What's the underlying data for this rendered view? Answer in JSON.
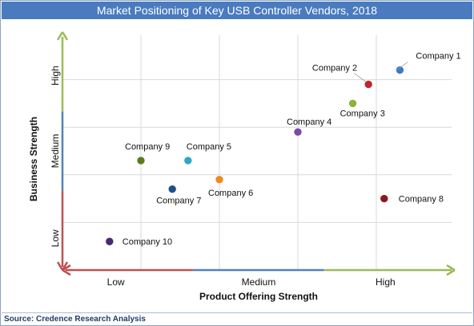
{
  "title": "Market Positioning of Key USB Controller Vendors, 2018",
  "source": "Source: Credence Research Analysis",
  "chart_data": {
    "type": "scatter",
    "title": "Market Positioning of Key USB Controller Vendors, 2018",
    "xlabel": "Product Offering Strength",
    "ylabel": "Business Strength",
    "x_ticks": [
      "Low",
      "Medium",
      "High"
    ],
    "y_ticks": [
      "Low",
      "Medium",
      "High"
    ],
    "xlim": [
      0,
      5
    ],
    "ylim": [
      0,
      5
    ],
    "grid": true,
    "points": [
      {
        "name": "Company 1",
        "x": 4.3,
        "y": 4.2,
        "color": "#3a78c9"
      },
      {
        "name": "Company 2",
        "x": 3.9,
        "y": 3.9,
        "color": "#c0262d"
      },
      {
        "name": "Company 3",
        "x": 3.7,
        "y": 3.5,
        "color": "#8db33a"
      },
      {
        "name": "Company 4",
        "x": 3.0,
        "y": 2.9,
        "color": "#7a4aa8"
      },
      {
        "name": "Company 5",
        "x": 1.6,
        "y": 2.3,
        "color": "#2ea6c4"
      },
      {
        "name": "Company 6",
        "x": 2.0,
        "y": 1.9,
        "color": "#f08a24"
      },
      {
        "name": "Company 7",
        "x": 1.4,
        "y": 1.7,
        "color": "#1e4f86"
      },
      {
        "name": "Company 8",
        "x": 4.1,
        "y": 1.5,
        "color": "#8b1a1f"
      },
      {
        "name": "Company 9",
        "x": 1.0,
        "y": 2.3,
        "color": "#5d7a1f"
      },
      {
        "name": "Company 10",
        "x": 0.6,
        "y": 0.6,
        "color": "#4a2a6e"
      }
    ]
  }
}
